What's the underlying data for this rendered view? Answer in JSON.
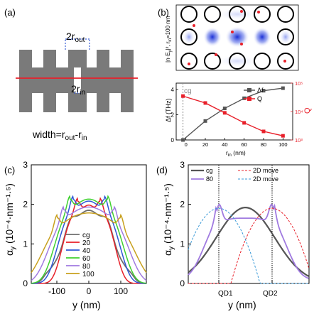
{
  "panel_a": {
    "label": "(a)",
    "r_out_label": "2r",
    "r_out_sub": "out",
    "r_in_label": "2r",
    "r_in_sub": "in",
    "width_caption": "width=r",
    "width_sub1": "out",
    "width_mid": "-r",
    "width_sub2": "in"
  },
  "panel_b": {
    "label": "(b)",
    "field_label": "|n·E",
    "field_sub": "y",
    "field_rest": "|², r",
    "field_sub2": "in",
    "field_end": "=100 nm",
    "marker": "cg",
    "ylabel": "Δf (THz)",
    "y2label": "Q",
    "xlabel": "r",
    "xlabel_sub": "in",
    "xlabel_unit": " (nm)",
    "legend": [
      "Δf",
      "Q"
    ],
    "colors": {
      "df": "#555555",
      "q": "#e8202a"
    }
  },
  "panel_c": {
    "label": "(c)",
    "ylabel": "α",
    "ylabel_sub": "y",
    "ylabel_rest": " (10⁻⁴·nm⁻¹·⁵)",
    "xlabel": "y (nm)",
    "legend": [
      {
        "name": "cg",
        "color": "#6e6e6e"
      },
      {
        "name": "20",
        "color": "#e8202a"
      },
      {
        "name": "40",
        "color": "#2e57d6"
      },
      {
        "name": "60",
        "color": "#3fd12f"
      },
      {
        "name": "80",
        "color": "#a07ae0"
      },
      {
        "name": "100",
        "color": "#c8a01e"
      }
    ]
  },
  "panel_d": {
    "label": "(d)",
    "ylabel": "α",
    "ylabel_sub": "y",
    "ylabel_rest": " (10⁻⁴·nm⁻¹·⁵)",
    "xlabel": "y (nm)",
    "qd1": "QD1",
    "qd2": "QD2",
    "legend": [
      {
        "name": "cg",
        "color": "#555555"
      },
      {
        "name": "80",
        "color": "#a07ae0"
      },
      {
        "name": "2D move",
        "color": "#e8202a"
      },
      {
        "name": "2D move",
        "color": "#3a9ad8"
      }
    ]
  },
  "chart_data": [
    {
      "type": "line",
      "x": [
        -3,
        20,
        40,
        60,
        80,
        100
      ],
      "xlim": [
        -10,
        110
      ],
      "xticks": [
        0,
        20,
        40,
        60,
        80,
        100
      ],
      "series": [
        {
          "name": "Δf",
          "axis": "left",
          "values": [
            0,
            1.5,
            2.5,
            3.3,
            3.9,
            4.1
          ],
          "ylim": [
            0,
            4.5
          ],
          "yticks": [
            0,
            2,
            4
          ]
        },
        {
          "name": "Q",
          "axis": "right",
          "scale": "log",
          "values": [
            35000,
            20000,
            9000,
            4000,
            2000,
            1400
          ],
          "ylim": [
            1000,
            100000
          ],
          "yticks": [
            "10³",
            "10⁴",
            "10⁵"
          ]
        }
      ]
    },
    {
      "type": "line",
      "xlim": [
        -180,
        180
      ],
      "xticks": [
        -100,
        0,
        100
      ],
      "ylim": [
        0,
        3
      ],
      "yticks": [
        0,
        1,
        2,
        3
      ],
      "series": [
        {
          "name": "cg",
          "peaks": [
            [
              -60,
              1.95
            ],
            [
              60,
              1.95
            ]
          ],
          "center": 1.85
        },
        {
          "name": "20",
          "peaks": [
            [
              -35,
              2.2
            ],
            [
              35,
              2.2
            ]
          ],
          "center": 1.6
        },
        {
          "name": "40",
          "peaks": [
            [
              -50,
              2.3
            ],
            [
              50,
              2.3
            ]
          ],
          "center": 1.7
        },
        {
          "name": "60",
          "peaks": [
            [
              -60,
              2.35
            ],
            [
              60,
              2.35
            ]
          ],
          "center": 1.6
        },
        {
          "name": "80",
          "peaks": [
            [
              -80,
              2.15
            ],
            [
              80,
              2.15
            ]
          ],
          "center": 1.6
        },
        {
          "name": "100",
          "peaks": [
            [
              -100,
              2.0
            ],
            [
              100,
              2.0
            ]
          ],
          "center": 1.4
        }
      ]
    },
    {
      "type": "line",
      "xticks": [
        "QD1",
        "QD2"
      ],
      "ylim": [
        0,
        3
      ],
      "yticks": [
        0,
        1,
        2,
        3
      ],
      "series": [
        {
          "name": "cg",
          "max": 1.95
        },
        {
          "name": "80",
          "max": 2.15
        },
        {
          "name": "2D move",
          "max": 1.9
        },
        {
          "name": "2D move",
          "max": 1.9
        }
      ]
    }
  ]
}
